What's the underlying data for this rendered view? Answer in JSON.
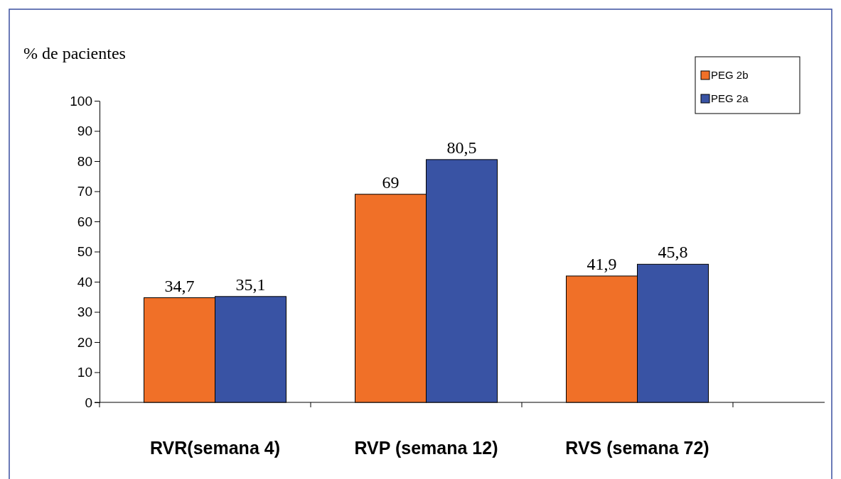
{
  "chart_data": {
    "type": "bar",
    "ylabel": "% de pacientes",
    "categories": [
      "RVR(semana 4)",
      "RVP (semana 12)",
      "RVS (semana 72)"
    ],
    "series": [
      {
        "name": "PEG 2b",
        "color": "#f07028",
        "values": [
          34.7,
          69,
          41.9
        ],
        "value_labels": [
          "34,7",
          "69",
          "41,9"
        ]
      },
      {
        "name": "PEG 2a",
        "color": "#3953a4",
        "values": [
          35.1,
          80.5,
          45.8
        ],
        "value_labels": [
          "35,1",
          "80,5",
          "45,8"
        ]
      }
    ],
    "ylim": [
      0,
      100
    ],
    "yticks": [
      0,
      10,
      20,
      30,
      40,
      50,
      60,
      70,
      80,
      90,
      100
    ],
    "legend": "top right",
    "grid": false
  }
}
